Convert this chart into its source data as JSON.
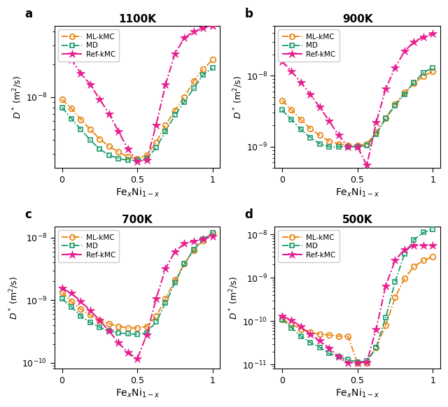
{
  "panels": [
    {
      "label": "a",
      "title": "1100K",
      "ylim_lo": 2.2e-09,
      "ylim_hi": 4.5e-08,
      "ml_kmc_x": [
        0.0,
        0.0625,
        0.125,
        0.1875,
        0.25,
        0.3125,
        0.375,
        0.4375,
        0.5,
        0.5625,
        0.625,
        0.6875,
        0.75,
        0.8125,
        0.875,
        0.9375,
        1.0
      ],
      "ml_kmc_y": [
        9.5e-09,
        7.8e-09,
        6.2e-09,
        5e-09,
        4.1e-09,
        3.5e-09,
        3.1e-09,
        2.8e-09,
        2.7e-09,
        2.9e-09,
        3.8e-09,
        5.5e-09,
        7.5e-09,
        1e-08,
        1.4e-08,
        1.8e-08,
        2.2e-08
      ],
      "md_x": [
        0.0,
        0.0625,
        0.125,
        0.1875,
        0.25,
        0.3125,
        0.375,
        0.4375,
        0.5,
        0.5625,
        0.625,
        0.6875,
        0.75,
        0.8125,
        0.875,
        0.9375,
        1.0
      ],
      "md_y": [
        8e-09,
        6.3e-09,
        5e-09,
        4e-09,
        3.3e-09,
        2.9e-09,
        2.7e-09,
        2.6e-09,
        2.6e-09,
        2.7e-09,
        3.4e-09,
        4.8e-09,
        6.8e-09,
        9e-09,
        1.2e-08,
        1.6e-08,
        1.85e-08
      ],
      "ref_x": [
        0.0,
        0.0625,
        0.125,
        0.1875,
        0.25,
        0.3125,
        0.375,
        0.4375,
        0.5,
        0.5625,
        0.625,
        0.6875,
        0.75,
        0.8125,
        0.875,
        0.9375,
        1.0
      ],
      "ref_y": [
        2.8e-08,
        2.2e-08,
        1.65e-08,
        1.3e-08,
        9.5e-09,
        7e-09,
        4.8e-09,
        3.3e-09,
        2.55e-09,
        2.6e-09,
        5.5e-09,
        1.3e-08,
        2.5e-08,
        3.5e-08,
        4e-08,
        4.3e-08,
        4.5e-08
      ]
    },
    {
      "label": "b",
      "title": "900K",
      "ylim_lo": 5e-10,
      "ylim_hi": 5e-08,
      "ml_kmc_x": [
        0.0,
        0.0625,
        0.125,
        0.1875,
        0.25,
        0.3125,
        0.375,
        0.4375,
        0.5,
        0.5625,
        0.625,
        0.6875,
        0.75,
        0.8125,
        0.875,
        0.9375,
        1.0
      ],
      "ml_kmc_y": [
        4.5e-09,
        3.3e-09,
        2.4e-09,
        1.8e-09,
        1.45e-09,
        1.2e-09,
        1.1e-09,
        1.05e-09,
        1.05e-09,
        1.1e-09,
        1.6e-09,
        2.5e-09,
        4e-09,
        5.8e-09,
        7.8e-09,
        9.8e-09,
        1.15e-08
      ],
      "md_x": [
        0.0,
        0.0625,
        0.125,
        0.1875,
        0.25,
        0.3125,
        0.375,
        0.4375,
        0.5,
        0.5625,
        0.625,
        0.6875,
        0.75,
        0.8125,
        0.875,
        0.9375,
        1.0
      ],
      "md_y": [
        3.3e-09,
        2.4e-09,
        1.75e-09,
        1.35e-09,
        1.1e-09,
        1e-09,
        1e-09,
        1e-09,
        1e-09,
        1.05e-09,
        1.5e-09,
        2.5e-09,
        3.8e-09,
        5.5e-09,
        8e-09,
        1.1e-08,
        1.3e-08
      ],
      "ref_x": [
        0.0,
        0.0625,
        0.125,
        0.1875,
        0.25,
        0.3125,
        0.375,
        0.4375,
        0.5,
        0.5625,
        0.625,
        0.6875,
        0.75,
        0.8125,
        0.875,
        0.9375,
        1.0
      ],
      "ref_y": [
        1.6e-08,
        1.15e-08,
        8e-09,
        5.5e-09,
        3.6e-09,
        2.3e-09,
        1.45e-09,
        1e-09,
        1e-09,
        5.5e-10,
        2.2e-09,
        6.5e-09,
        1.3e-08,
        2.2e-08,
        3e-08,
        3.5e-08,
        3.9e-08
      ]
    },
    {
      "label": "c",
      "title": "700K",
      "ylim_lo": 8e-11,
      "ylim_hi": 1.5e-08,
      "ml_kmc_x": [
        0.0,
        0.0625,
        0.125,
        0.1875,
        0.25,
        0.3125,
        0.375,
        0.4375,
        0.5,
        0.5625,
        0.625,
        0.6875,
        0.75,
        0.8125,
        0.875,
        0.9375,
        1.0
      ],
      "ml_kmc_y": [
        1.35e-09,
        9.5e-10,
        7.2e-10,
        5.8e-10,
        4.8e-10,
        4.2e-10,
        3.8e-10,
        3.6e-10,
        3.6e-10,
        3.8e-10,
        5.5e-10,
        1.05e-09,
        2.1e-09,
        3.8e-09,
        6.2e-09,
        9e-09,
        1.2e-08
      ],
      "md_x": [
        0.0,
        0.0625,
        0.125,
        0.1875,
        0.25,
        0.3125,
        0.375,
        0.4375,
        0.5,
        0.5625,
        0.625,
        0.6875,
        0.75,
        0.8125,
        0.875,
        0.9375,
        1.0
      ],
      "md_y": [
        1.05e-09,
        7.8e-10,
        5.6e-10,
        4.4e-10,
        3.7e-10,
        3.2e-10,
        3e-10,
        2.9e-10,
        2.85e-10,
        3e-10,
        4.5e-10,
        9e-10,
        1.9e-09,
        3.8e-09,
        6.5e-09,
        9.5e-09,
        1.2e-08
      ],
      "ref_x": [
        0.0,
        0.0625,
        0.125,
        0.1875,
        0.25,
        0.3125,
        0.375,
        0.4375,
        0.5,
        0.5625,
        0.625,
        0.6875,
        0.75,
        0.8125,
        0.875,
        0.9375,
        1.0
      ],
      "ref_y": [
        1.55e-09,
        1.3e-09,
        9.5e-10,
        6.8e-10,
        4.8e-10,
        3.2e-10,
        2.1e-10,
        1.45e-10,
        1.15e-10,
        2.8e-10,
        1.05e-09,
        3.2e-09,
        6e-09,
        8e-09,
        8.8e-09,
        9.5e-09,
        1.05e-08
      ]
    },
    {
      "label": "d",
      "title": "500K",
      "ylim_lo": 8e-12,
      "ylim_hi": 1.5e-08,
      "ml_kmc_x": [
        0.0,
        0.0625,
        0.125,
        0.1875,
        0.25,
        0.3125,
        0.375,
        0.4375,
        0.5,
        0.5625,
        0.625,
        0.6875,
        0.75,
        0.8125,
        0.875,
        0.9375,
        1.0
      ],
      "ml_kmc_y": [
        1.1e-10,
        8.5e-11,
        6.5e-11,
        5.5e-11,
        5e-11,
        4.8e-11,
        4.5e-11,
        4.5e-11,
        1.1e-11,
        1.1e-11,
        2.5e-11,
        8e-11,
        3.5e-10,
        9.5e-10,
        1.8e-09,
        2.5e-09,
        3e-09
      ],
      "md_x": [
        0.0,
        0.0625,
        0.125,
        0.1875,
        0.25,
        0.3125,
        0.375,
        0.4375,
        0.5,
        0.5625,
        0.625,
        0.6875,
        0.75,
        0.8125,
        0.875,
        0.9375,
        1.0
      ],
      "md_y": [
        1.1e-10,
        7e-11,
        4.5e-11,
        3.2e-11,
        2.5e-11,
        1.8e-11,
        1.5e-11,
        1.3e-11,
        1.15e-11,
        1.2e-11,
        2.5e-11,
        1.2e-10,
        8e-10,
        3.5e-09,
        7.5e-09,
        1.1e-08,
        1.3e-08
      ],
      "ref_x": [
        0.0,
        0.0625,
        0.125,
        0.1875,
        0.25,
        0.3125,
        0.375,
        0.4375,
        0.5,
        0.5625,
        0.625,
        0.6875,
        0.75,
        0.8125,
        0.875,
        0.9375,
        1.0
      ],
      "ref_y": [
        1.3e-10,
        1.05e-10,
        7.5e-11,
        5e-11,
        3.5e-11,
        2.4e-11,
        1.5e-11,
        1.1e-11,
        1.1e-11,
        1.15e-11,
        6.5e-11,
        6.5e-10,
        2.5e-09,
        4.5e-09,
        5.5e-09,
        5.5e-09,
        5.5e-09
      ]
    }
  ],
  "ml_color": "#E8820C",
  "md_color": "#1D9C6E",
  "ref_color": "#E61D8E"
}
